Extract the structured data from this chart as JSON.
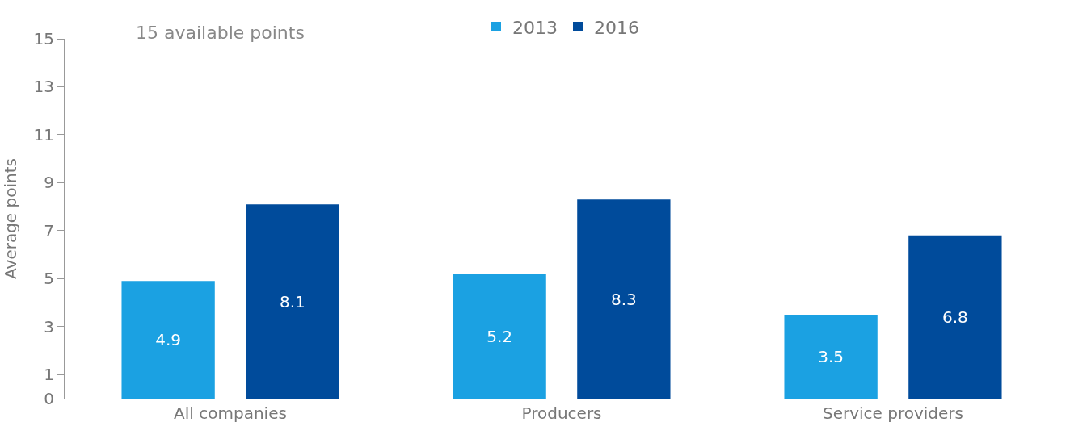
{
  "chart_data": {
    "type": "bar",
    "ylabel": "Average points",
    "categories": [
      "All companies",
      "Producers",
      "Service providers"
    ],
    "series": [
      {
        "name": "2013",
        "color": "#1ba1e2",
        "values": [
          4.9,
          5.2,
          3.5
        ]
      },
      {
        "name": "2016",
        "color": "#004b9b",
        "values": [
          8.1,
          8.3,
          6.8
        ]
      }
    ],
    "ylim": [
      0,
      15
    ],
    "yticks": [
      0,
      1,
      3,
      5,
      7,
      9,
      11,
      13,
      15
    ],
    "legend": "top",
    "data_labels": true,
    "annotations": [
      "15 available points"
    ]
  }
}
